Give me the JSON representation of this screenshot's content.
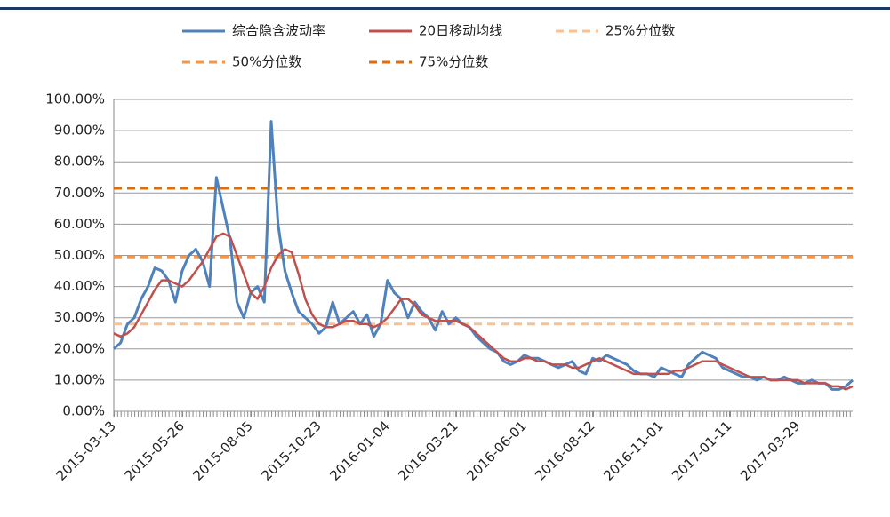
{
  "chart_data": {
    "type": "line",
    "categories": [
      "2015-03-13",
      null,
      null,
      null,
      null,
      null,
      null,
      null,
      null,
      null,
      "2015-05-26",
      null,
      null,
      null,
      null,
      null,
      null,
      null,
      null,
      null,
      "2015-08-05",
      null,
      null,
      null,
      null,
      null,
      null,
      null,
      null,
      null,
      "2015-10-23",
      null,
      null,
      null,
      null,
      null,
      null,
      null,
      null,
      null,
      "2016-01-04",
      null,
      null,
      null,
      null,
      null,
      null,
      null,
      null,
      null,
      "2016-03-21",
      null,
      null,
      null,
      null,
      null,
      null,
      null,
      null,
      null,
      "2016-06-01",
      null,
      null,
      null,
      null,
      null,
      null,
      null,
      null,
      null,
      "2016-08-12",
      null,
      null,
      null,
      null,
      null,
      null,
      null,
      null,
      null,
      "2016-11-01",
      null,
      null,
      null,
      null,
      null,
      null,
      null,
      null,
      null,
      "2017-01-11",
      null,
      null,
      null,
      null,
      null,
      null,
      null,
      null,
      null,
      "2017-03-29",
      null,
      null,
      null,
      null,
      null,
      null,
      null,
      null
    ],
    "series": [
      {
        "name": "综合隐含波动率",
        "color": "#4f81bd",
        "values": [
          20,
          22,
          28,
          30,
          36,
          40,
          46,
          45,
          42,
          35,
          45,
          50,
          52,
          48,
          40,
          75,
          65,
          55,
          35,
          30,
          38,
          40,
          35,
          93,
          60,
          45,
          38,
          32,
          30,
          28,
          25,
          27,
          35,
          28,
          30,
          32,
          28,
          31,
          24,
          28,
          42,
          38,
          36,
          30,
          35,
          32,
          30,
          26,
          32,
          28,
          30,
          28,
          27,
          24,
          22,
          20,
          19,
          16,
          15,
          16,
          18,
          17,
          17,
          16,
          15,
          14,
          15,
          16,
          13,
          12,
          17,
          16,
          18,
          17,
          16,
          15,
          13,
          12,
          12,
          11,
          14,
          13,
          12,
          11,
          15,
          17,
          19,
          18,
          17,
          14,
          13,
          12,
          11,
          11,
          10,
          11,
          10,
          10,
          11,
          10,
          9,
          9,
          10,
          9,
          9,
          7,
          7,
          8,
          10
        ]
      },
      {
        "name": "20日移动均线",
        "color": "#c0504d",
        "values": [
          25,
          24,
          25,
          27,
          31,
          35,
          39,
          42,
          42,
          41,
          40,
          42,
          45,
          48,
          52,
          56,
          57,
          56,
          50,
          44,
          38,
          36,
          40,
          46,
          50,
          52,
          51,
          44,
          36,
          31,
          28,
          27,
          27,
          28,
          29,
          29,
          28,
          28,
          27,
          28,
          30,
          33,
          36,
          36,
          34,
          31,
          30,
          29,
          29,
          29,
          29,
          28,
          27,
          25,
          23,
          21,
          19,
          17,
          16,
          16,
          17,
          17,
          16,
          16,
          15,
          15,
          15,
          14,
          14,
          15,
          16,
          17,
          16,
          15,
          14,
          13,
          12,
          12,
          12,
          12,
          12,
          12,
          13,
          13,
          14,
          15,
          16,
          16,
          16,
          15,
          14,
          13,
          12,
          11,
          11,
          11,
          10,
          10,
          10,
          10,
          10,
          9,
          9,
          9,
          9,
          8,
          8,
          7,
          8
        ]
      }
    ],
    "levels": [
      {
        "name": "25%分位数",
        "color": "#fac090",
        "value": 28
      },
      {
        "name": "50%分位数",
        "color": "#f79646",
        "value": 49.5
      },
      {
        "name": "75%分位数",
        "color": "#e36c09",
        "value": 71.5
      }
    ],
    "ylim": [
      0,
      100
    ],
    "yticks": [
      {
        "value": 0,
        "label": "0.00%"
      },
      {
        "value": 10,
        "label": "10.00%"
      },
      {
        "value": 20,
        "label": "20.00%"
      },
      {
        "value": 30,
        "label": "30.00%"
      },
      {
        "value": 40,
        "label": "40.00%"
      },
      {
        "value": 50,
        "label": "50.00%"
      },
      {
        "value": 60,
        "label": "60.00%"
      },
      {
        "value": 70,
        "label": "70.00%"
      },
      {
        "value": 80,
        "label": "80.00%"
      },
      {
        "value": 90,
        "label": "90.00%"
      },
      {
        "value": 100,
        "label": "100.00%"
      }
    ],
    "grid": true
  }
}
